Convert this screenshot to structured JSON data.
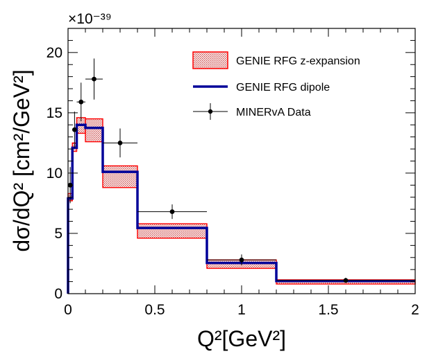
{
  "chart_data": {
    "type": "histogram",
    "xlabel": "Q²[GeV²]",
    "ylabel": "dσ/dQ² [cm²/GeV²]",
    "y_multiplier": "×10⁻³⁹",
    "xlim": [
      0,
      2
    ],
    "ylim": [
      0,
      22
    ],
    "x_ticks": [
      "0",
      "0.5",
      "1",
      "1.5",
      "2"
    ],
    "y_ticks": [
      "0",
      "5",
      "10",
      "15",
      "20"
    ],
    "bin_edges": [
      0,
      0.025,
      0.05,
      0.1,
      0.2,
      0.4,
      0.8,
      1.2,
      2.0
    ],
    "legend_position": "top-right",
    "series": [
      {
        "name": "GENIE RFG z-expansion",
        "style": "band",
        "color": "#ff0000",
        "fill": "#e8a0a0",
        "lower": [
          7.7,
          11.8,
          13.3,
          12.6,
          8.8,
          4.6,
          2.1,
          0.8
        ],
        "upper": [
          8.3,
          12.5,
          14.6,
          14.5,
          10.6,
          5.8,
          2.8,
          1.15
        ]
      },
      {
        "name": "GENIE RFG dipole",
        "style": "step",
        "color": "#000099",
        "values": [
          7.9,
          12.1,
          14.0,
          13.75,
          10.1,
          5.45,
          2.55,
          1.05
        ]
      },
      {
        "name": "MINERvA Data",
        "style": "points",
        "color": "#000000",
        "x": [
          0.0125,
          0.0375,
          0.075,
          0.15,
          0.3,
          0.6,
          1.0,
          1.6
        ],
        "xerr": [
          0.0125,
          0.0125,
          0.025,
          0.05,
          0.1,
          0.2,
          0.2,
          0.4
        ],
        "y": [
          9.0,
          13.6,
          15.9,
          17.8,
          12.5,
          6.8,
          2.8,
          1.1
        ],
        "yerr": [
          1.5,
          1.5,
          1.6,
          1.7,
          1.2,
          0.6,
          0.45,
          0.22
        ]
      }
    ]
  }
}
